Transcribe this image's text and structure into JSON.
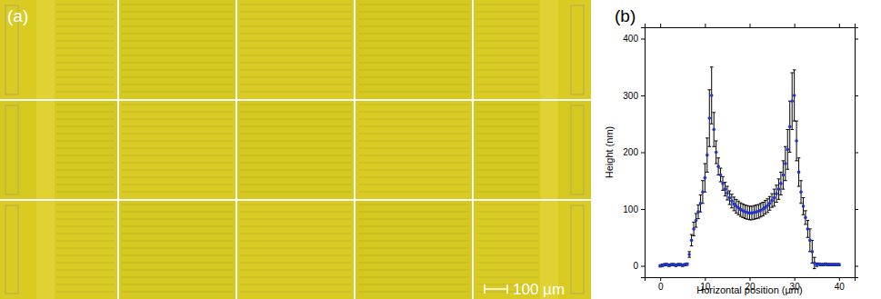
{
  "figure_panels": {
    "a": {
      "label": "(a)",
      "scale_bar_label": "100 µm"
    }
  },
  "chart_data": {
    "type": "scatter",
    "title": "(b)",
    "x_label": "Horizontal position (µm)",
    "y_label": "Height (nm)",
    "x": [
      0,
      0.5,
      1,
      1.5,
      2,
      2.5,
      3,
      3.5,
      4,
      4.5,
      5,
      5.5,
      6,
      6.5,
      7,
      7.5,
      8,
      8.5,
      9,
      9.5,
      10,
      10.5,
      11,
      11.5,
      12,
      12.5,
      13,
      13.5,
      14,
      14.5,
      15,
      15.5,
      16,
      16.5,
      17,
      17.5,
      18,
      18.5,
      19,
      19.5,
      20,
      20.5,
      21,
      21.5,
      22,
      22.5,
      23,
      23.5,
      24,
      24.5,
      25,
      25.5,
      26,
      26.5,
      27,
      27.5,
      28,
      28.5,
      29,
      29.5,
      30,
      30.5,
      31,
      31.5,
      32,
      32.5,
      33,
      33.5,
      34,
      34.5,
      35,
      35.5,
      36,
      36.5,
      37,
      37.5,
      38,
      38.5,
      39,
      39.5,
      40
    ],
    "values": [
      0,
      1,
      2,
      2,
      1,
      2,
      2,
      1,
      2,
      2,
      1,
      2,
      3,
      20,
      45,
      65,
      80,
      95,
      110,
      130,
      155,
      195,
      260,
      300,
      240,
      200,
      175,
      160,
      145,
      135,
      128,
      120,
      114,
      109,
      105,
      102,
      99,
      97,
      95,
      94,
      93,
      93,
      94,
      95,
      96,
      98,
      100,
      103,
      106,
      110,
      115,
      120,
      127,
      135,
      145,
      160,
      180,
      205,
      245,
      290,
      300,
      220,
      165,
      130,
      105,
      85,
      65,
      45,
      25,
      5,
      2,
      3,
      2,
      2,
      3,
      2,
      2,
      2,
      2,
      2,
      2
    ],
    "errors": [
      2,
      2,
      2,
      2,
      2,
      2,
      2,
      2,
      2,
      2,
      2,
      2,
      2,
      5,
      10,
      12,
      12,
      12,
      15,
      20,
      25,
      30,
      50,
      50,
      30,
      20,
      15,
      12,
      12,
      12,
      12,
      12,
      12,
      12,
      12,
      12,
      12,
      12,
      12,
      12,
      12,
      12,
      12,
      12,
      12,
      12,
      12,
      12,
      12,
      12,
      12,
      15,
      15,
      18,
      20,
      25,
      30,
      35,
      45,
      50,
      45,
      35,
      25,
      20,
      15,
      12,
      15,
      20,
      20,
      10,
      3,
      2,
      2,
      2,
      2,
      2,
      2,
      2,
      2,
      2,
      2
    ],
    "color": "#2233cc",
    "marker": "circle",
    "xlim": [
      -3.5,
      43.5
    ],
    "ylim": [
      -20,
      420
    ],
    "xticks": [
      0,
      10,
      20,
      30,
      40
    ],
    "yticks": [
      0,
      100,
      200,
      300,
      400
    ],
    "grid": false
  }
}
